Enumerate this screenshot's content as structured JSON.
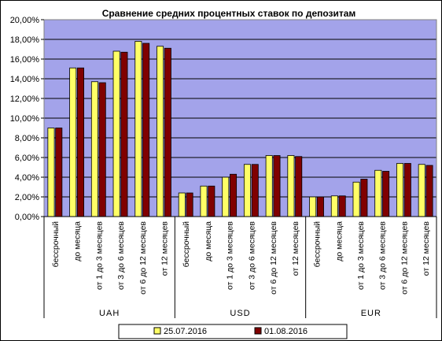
{
  "chart_data": {
    "type": "bar",
    "title": "Сравнение средних процентных ставок по депозитам",
    "xlabel": "",
    "ylabel": "",
    "ylim": [
      0,
      20
    ],
    "y_ticks": [
      "0,00%",
      "2,00%",
      "4,00%",
      "6,00%",
      "8,00%",
      "10,00%",
      "12,00%",
      "14,00%",
      "16,00%",
      "18,00%",
      "20,00%"
    ],
    "grid": true,
    "legend_position": "bottom",
    "groups": [
      "UAH",
      "USD",
      "EUR"
    ],
    "categories": [
      "бессрочный",
      "до месяца",
      "от 1 до 3 месяцев",
      "от 3 до 6 месяцев",
      "от 6 до 12 месяцев",
      "от 12 месяцев",
      "бессрочный",
      "до месяца",
      "от 1 до 3 месяцев",
      "от 3 до 6 месяцев",
      "от 6 до 12 месяцев",
      "от 12 месяцев",
      "бессрочный",
      "до месяца",
      "от 1 до 3 месяцев",
      "от 3 до 6 месяцев",
      "от 6 до 12 месяцев",
      "от 12 месяцев"
    ],
    "series": [
      {
        "name": "25.07.2016",
        "color": "#ffff66",
        "values": [
          9.0,
          15.1,
          13.7,
          16.8,
          17.8,
          17.3,
          2.4,
          3.1,
          4.0,
          5.3,
          6.2,
          6.2,
          2.0,
          2.1,
          3.5,
          4.7,
          5.4,
          5.3
        ]
      },
      {
        "name": "01.08.2016",
        "color": "#800000",
        "values": [
          9.0,
          15.1,
          13.6,
          16.7,
          17.6,
          17.1,
          2.4,
          3.1,
          4.3,
          5.3,
          6.2,
          6.1,
          2.0,
          2.1,
          3.8,
          4.6,
          5.4,
          5.2
        ]
      }
    ],
    "plot_background": "#a3a3ea"
  }
}
